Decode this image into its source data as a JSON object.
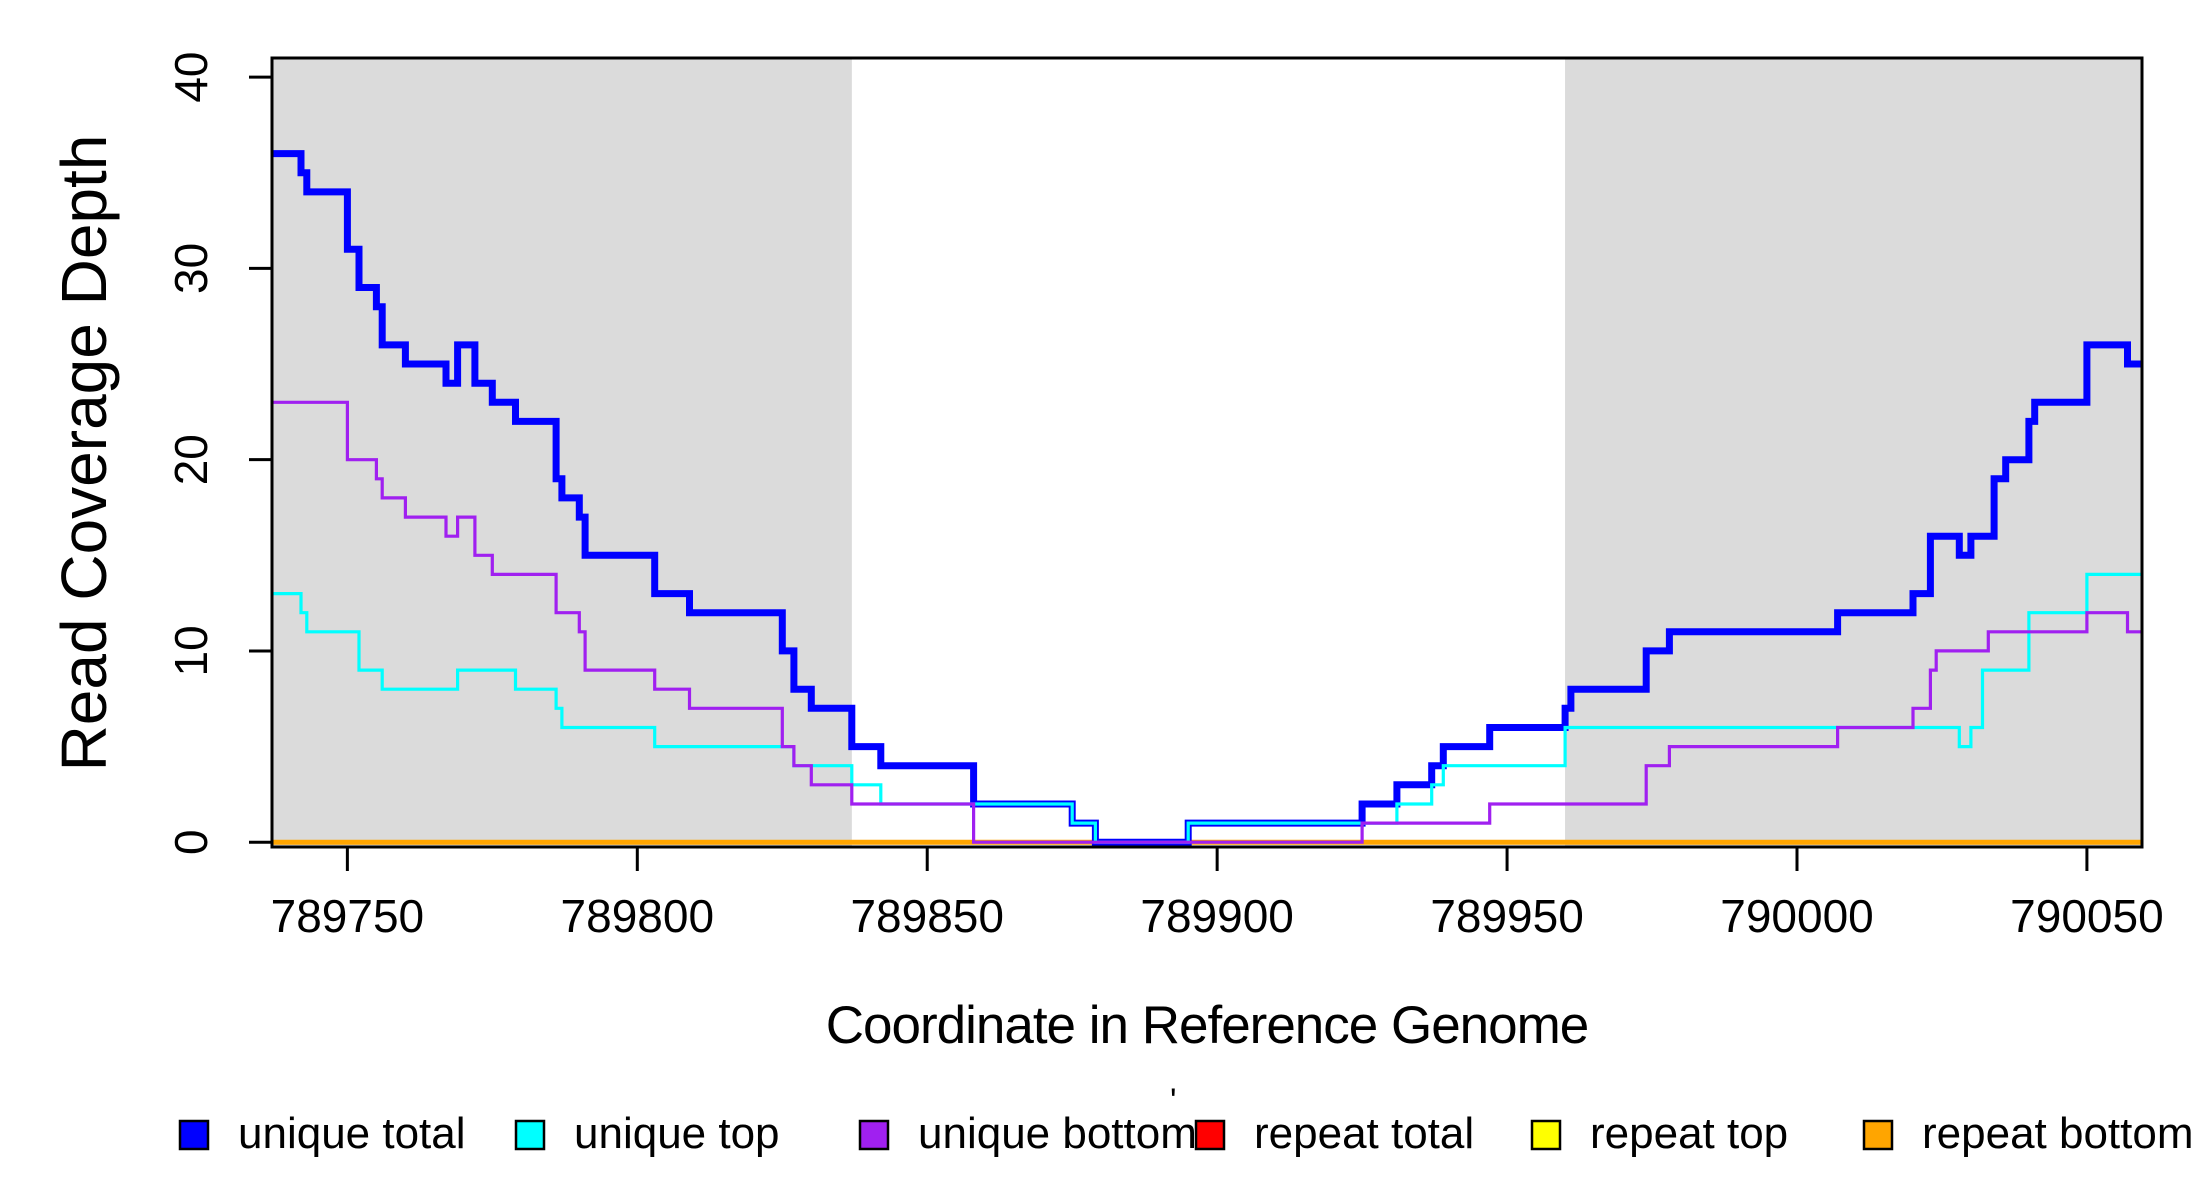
{
  "figure": {
    "kind": "read-coverage-step-plot",
    "legend": {
      "position": "bottom",
      "stray_mark": "'",
      "items": [
        {
          "label": "unique total",
          "color": "#0000FF"
        },
        {
          "label": "unique top",
          "color": "#00FFFF"
        },
        {
          "label": "unique bottom",
          "color": "#A020F0"
        },
        {
          "label": "repeat total",
          "color": "#FF0000"
        },
        {
          "label": "repeat top",
          "color": "#FFFF00"
        },
        {
          "label": "repeat bottom",
          "color": "#FFA500"
        }
      ]
    }
  },
  "chart_data": {
    "type": "line",
    "step_mode": "post",
    "title": "",
    "xlabel": "Coordinate in Reference Genome",
    "ylabel": "Read Coverage Depth",
    "xlim": [
      789737,
      790059.5
    ],
    "ylim": [
      -0.25,
      41
    ],
    "grid": false,
    "x_ticks": [
      789750,
      789800,
      789850,
      789900,
      789950,
      790000,
      790050
    ],
    "x_tick_labels": [
      "789750",
      "789800",
      "789850",
      "789900",
      "789950",
      "790000",
      "790050"
    ],
    "y_ticks": [
      0,
      10,
      20,
      30,
      40
    ],
    "y_tick_labels": [
      "0",
      "10",
      "20",
      "30",
      "40"
    ],
    "shaded_regions": [
      {
        "from": 789737,
        "to": 789837,
        "color": "#DBDBDB"
      },
      {
        "from": 789960,
        "to": 790059.5,
        "color": "#DBDBDB"
      }
    ],
    "draw_order": [
      "repeat total",
      "repeat top",
      "repeat bottom",
      "unique total",
      "unique top",
      "unique bottom"
    ],
    "series": [
      {
        "name": "unique total",
        "color": "#0000FF",
        "linewidth": 7,
        "points": [
          [
            789737,
            36
          ],
          [
            789742,
            35
          ],
          [
            789743,
            34
          ],
          [
            789750,
            31
          ],
          [
            789752,
            29
          ],
          [
            789755,
            28
          ],
          [
            789756,
            26
          ],
          [
            789760,
            25
          ],
          [
            789767,
            24
          ],
          [
            789769,
            26
          ],
          [
            789772,
            24
          ],
          [
            789775,
            23
          ],
          [
            789779,
            22
          ],
          [
            789786,
            19
          ],
          [
            789787,
            18
          ],
          [
            789790,
            17
          ],
          [
            789791,
            15
          ],
          [
            789803,
            13
          ],
          [
            789809,
            12
          ],
          [
            789825,
            10
          ],
          [
            789827,
            8
          ],
          [
            789830,
            7
          ],
          [
            789837,
            5
          ],
          [
            789842,
            4
          ],
          [
            789858,
            2
          ],
          [
            789875,
            1
          ],
          [
            789879,
            0
          ],
          [
            789895,
            1
          ],
          [
            789925,
            2
          ],
          [
            789931,
            3
          ],
          [
            789937,
            4
          ],
          [
            789939,
            5
          ],
          [
            789947,
            6
          ],
          [
            789960,
            7
          ],
          [
            789961,
            8
          ],
          [
            789974,
            10
          ],
          [
            789978,
            11
          ],
          [
            790007,
            12
          ],
          [
            790020,
            13
          ],
          [
            790023,
            16
          ],
          [
            790028,
            15
          ],
          [
            790030,
            16
          ],
          [
            790034,
            19
          ],
          [
            790036,
            20
          ],
          [
            790040,
            22
          ],
          [
            790041,
            23
          ],
          [
            790050,
            26
          ],
          [
            790057,
            25
          ]
        ]
      },
      {
        "name": "unique top",
        "color": "#00FFFF",
        "linewidth": 3.2,
        "points": [
          [
            789737,
            13
          ],
          [
            789742,
            12
          ],
          [
            789743,
            11
          ],
          [
            789752,
            9
          ],
          [
            789756,
            8
          ],
          [
            789769,
            9
          ],
          [
            789779,
            8
          ],
          [
            789786,
            7
          ],
          [
            789787,
            6
          ],
          [
            789803,
            5
          ],
          [
            789827,
            4
          ],
          [
            789837,
            3
          ],
          [
            789842,
            2
          ],
          [
            789875,
            1
          ],
          [
            789879,
            0
          ],
          [
            789895,
            1
          ],
          [
            789931,
            2
          ],
          [
            789937,
            3
          ],
          [
            789939,
            4
          ],
          [
            789960,
            6
          ],
          [
            790028,
            5
          ],
          [
            790030,
            6
          ],
          [
            790032,
            9
          ],
          [
            790040,
            12
          ],
          [
            790050,
            14
          ]
        ]
      },
      {
        "name": "unique bottom",
        "color": "#A020F0",
        "linewidth": 3.2,
        "points": [
          [
            789737,
            23
          ],
          [
            789750,
            20
          ],
          [
            789755,
            19
          ],
          [
            789756,
            18
          ],
          [
            789760,
            17
          ],
          [
            789767,
            16
          ],
          [
            789769,
            17
          ],
          [
            789772,
            15
          ],
          [
            789775,
            14
          ],
          [
            789786,
            12
          ],
          [
            789790,
            11
          ],
          [
            789791,
            9
          ],
          [
            789803,
            8
          ],
          [
            789809,
            7
          ],
          [
            789825,
            5
          ],
          [
            789827,
            4
          ],
          [
            789830,
            3
          ],
          [
            789837,
            2
          ],
          [
            789858,
            0
          ],
          [
            789925,
            1
          ],
          [
            789947,
            2
          ],
          [
            789974,
            4
          ],
          [
            789978,
            5
          ],
          [
            790007,
            6
          ],
          [
            790020,
            7
          ],
          [
            790023,
            9
          ],
          [
            790024,
            10
          ],
          [
            790033,
            11
          ],
          [
            790050,
            12
          ],
          [
            790057,
            11
          ]
        ]
      },
      {
        "name": "repeat total",
        "color": "#FF0000",
        "linewidth": 4,
        "points": [
          [
            789737,
            0
          ]
        ]
      },
      {
        "name": "repeat top",
        "color": "#FFFF00",
        "linewidth": 4,
        "points": [
          [
            789737,
            0
          ]
        ]
      },
      {
        "name": "repeat bottom",
        "color": "#FFA500",
        "linewidth": 5,
        "points": [
          [
            789737,
            0
          ]
        ]
      }
    ]
  }
}
